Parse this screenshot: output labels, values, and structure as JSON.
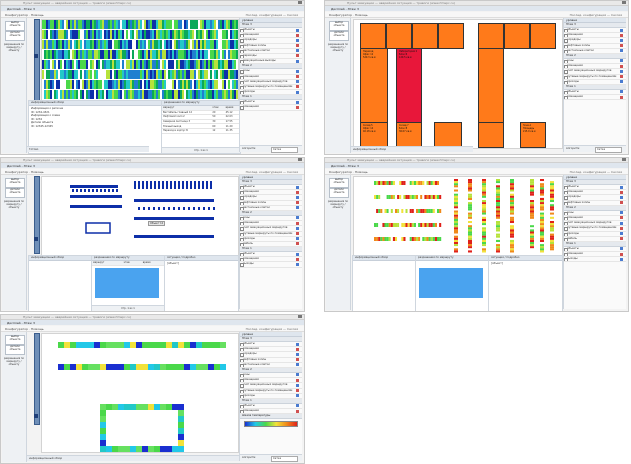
{
  "window": {
    "title_bar": "Пульт эвакуации — аварийная ситуация — тревоги (www.rtmspc.ru)",
    "tab": "Дисплей - Этаж 3",
    "menu": "Конфигуратор · Помощь",
    "menu_right": "Послед. конфигурация — Сессия"
  },
  "left_toolbar": {
    "select_btn": "выбор объекта",
    "details_btn": "детали объекта",
    "props_label": "разрешения по маршруту / объекту"
  },
  "right_panel": {
    "title": "уровни",
    "groups": [
      {
        "name": "Этаж 3",
        "items": [
          "объекты",
          "помещения",
          "коридоры",
          "лифтовые холлы",
          "лестничные клетки",
          "переходы",
          "эвакуационные выходы"
        ]
      },
      {
        "name": "Этаж 2",
        "items": [
          "зоны",
          "помещения",
          "учёт эвакуационных маршрутов",
          "путевые маршруты по помещениям",
          "проходы",
          "мебель"
        ]
      },
      {
        "name": "Этаж 1",
        "items": [
          "объекты",
          "помещения",
          "выходы"
        ]
      }
    ],
    "layer_colors": [
      "#4a7bd0",
      "#d05050",
      "#e0a000",
      "#4a7bd0",
      "#6aa84f"
    ],
    "footer_label": "Алгоритм:",
    "footer_value": "Сетка",
    "footer_label_2": "Алгоритм:",
    "footer_value_2": "Сетка"
  },
  "panel1": {
    "info_title": "информационный обзор",
    "info_lines": [
      "Информация о регионе",
      "ID: 1234-4321",
      "Информация о схеме",
      "ID: 1234",
      "Детали объекта",
      "ID: 12345-12345"
    ],
    "table_title": "разрешения по маршруту",
    "table_columns": [
      "маршрут",
      "этаж",
      "время"
    ],
    "table_rows": [
      [
        "Вестибюль главный 12",
        "20",
        "45.12"
      ],
      [
        "Лифтовой холл 2",
        "50",
        "22.03"
      ],
      [
        "Северная лестница 3",
        "30",
        "17.55"
      ],
      [
        "Южный выход",
        "60",
        "11.20"
      ],
      [
        "Переход в корпус Б",
        "12",
        "11.35"
      ]
    ],
    "pager": "Стр. 1 из 1",
    "status": "Готово"
  },
  "panel2": {
    "blocks": [
      {
        "t": "Переход\nОфис 12\n520.3 кв.м"
      },
      {
        "t": "Лаборатория 2\nБлок Б\n120.5 кв.м"
      },
      {
        "t": "Склад 5\nОфис 14\n40.18 кв.м"
      },
      {
        "t": "Склад 7\nБлок В\n36.07 кв.м"
      },
      {
        "t": "Зона А\nПлощадь\n215.0 кв.м"
      }
    ],
    "footer_label": "Алгоритм:",
    "footer_value": "Сетка",
    "status": "информационный обзор"
  },
  "panel3": {
    "info_title": "информационный обзор",
    "table_title": "разрешения по маршруту",
    "table_columns": [
      "маршрут",
      "этаж",
      "время"
    ],
    "side_title": "ситуация / подробно",
    "side_text": "[объект]",
    "tooltip": "Объект 12",
    "pager": "Стр. 1 из 1"
  },
  "panel4": {
    "info_title": "информационный обзор",
    "table_title": "разрешения по маршруту",
    "side_title": "ситуация / подробно",
    "side_text": "[объект]"
  },
  "panel5": {
    "status": "информационный обзор",
    "legend_title": "Шкала температуры",
    "footer_label": "Алгоритм:",
    "footer_value": "Сетка"
  },
  "colors": {
    "accent": "#3b5d8c",
    "orange": "#ff7a1a",
    "red": "#e8173a",
    "blue": "#0d2fa8",
    "highlight_blue": "#4aa3ef"
  }
}
